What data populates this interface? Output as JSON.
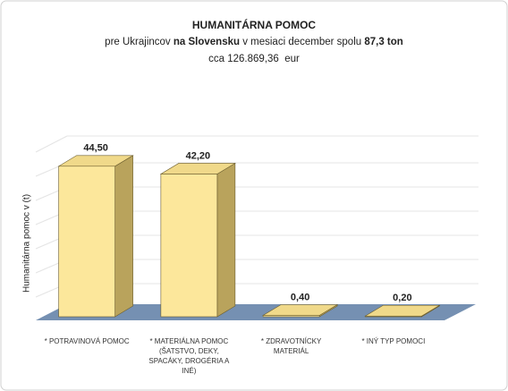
{
  "chart_data": {
    "type": "bar3d",
    "title": "HUMANITÁRNA POMOC",
    "subtitle_parts": [
      {
        "text": "pre Ukrajincov ",
        "bold": false
      },
      {
        "text": "na Slovensku",
        "bold": true
      },
      {
        "text": " v mesiaci december spolu ",
        "bold": false
      },
      {
        "text": "87,3 ton",
        "bold": true
      }
    ],
    "subtitle2": "cca 126.869,36  eur",
    "y_label": "Humanitárna pomoc v (t)",
    "categories": [
      "* POTRAVINOVÁ POMOC",
      "* MATERIÁLNA POMOC (ŠATSTVO, DEKY, SPACÁKY, DROGÉRIA A INÉ)",
      "* ZDRAVOTNÍCKY MATERIÁL",
      "* INÝ TYP POMOCI"
    ],
    "values": [
      44.5,
      42.2,
      0.4,
      0.2
    ],
    "value_labels": [
      "44,50",
      "42,20",
      "0,40",
      "0,20"
    ],
    "color": "#fce79b",
    "floor_color": "#7590b2",
    "ylim": [
      0,
      50
    ]
  }
}
